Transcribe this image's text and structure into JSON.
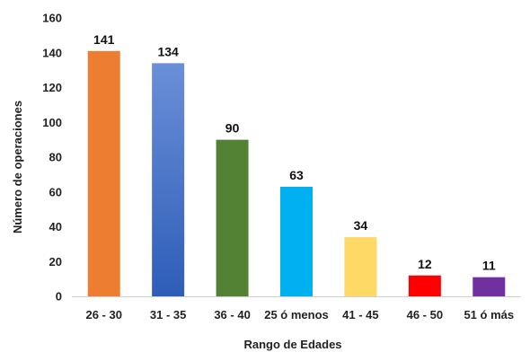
{
  "chart_data": {
    "type": "bar",
    "title": "",
    "xlabel": "Rango de Edades",
    "ylabel": "Número de operaciones",
    "categories": [
      "26 - 30",
      "31 - 35",
      "36 - 40",
      "25 ó menos",
      "41 - 45",
      "46 - 50",
      "51 ó más"
    ],
    "values": [
      141,
      134,
      90,
      63,
      34,
      12,
      11
    ],
    "data_labels": [
      "141",
      "134",
      "90",
      "63",
      "34",
      "12",
      "11"
    ],
    "colors": [
      "#ED7D31",
      "#4472C4",
      "#548235",
      "#00B0F0",
      "#FFD966",
      "#FF0000",
      "#7030A0"
    ],
    "ylim": [
      0,
      160
    ],
    "yticks": [
      0,
      20,
      40,
      60,
      80,
      100,
      120,
      140,
      160
    ],
    "grid": false,
    "legend": "none"
  }
}
